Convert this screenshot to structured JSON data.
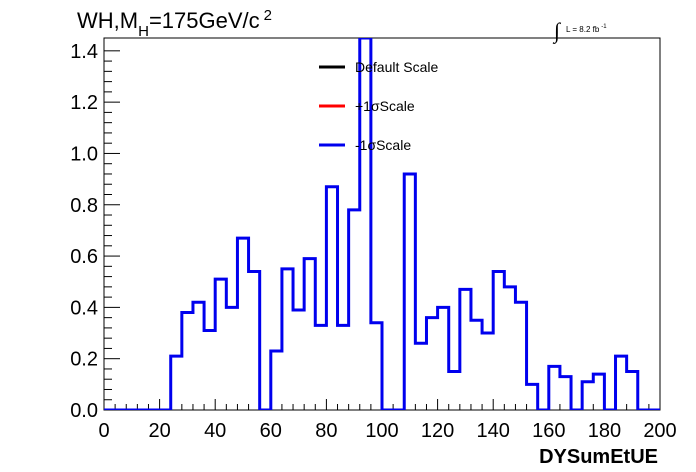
{
  "chart_data": {
    "type": "line",
    "title_main": "WH,M",
    "title_sub": "H",
    "title_rest": "=175GeV/c",
    "title_sup": "2",
    "lumi_label": "L = 8.2 fb",
    "lumi_sup": "-1",
    "integral_symbol": "∫",
    "xlabel": "DYSumEtUE",
    "ylabel": "",
    "xlim": [
      0,
      200
    ],
    "ylim": [
      0,
      1.45
    ],
    "x_ticks": [
      "0",
      "20",
      "40",
      "60",
      "80",
      "100",
      "120",
      "140",
      "160",
      "180",
      "200"
    ],
    "y_ticks": [
      "0.0",
      "0.2",
      "0.4",
      "0.6",
      "0.8",
      "1.0",
      "1.2",
      "1.4"
    ],
    "legend": [
      {
        "label": "Default Scale",
        "color": "#000000"
      },
      {
        "label": "+1σScale",
        "color": "#ff0000"
      },
      {
        "label": "-1σScale",
        "color": "#0000ee"
      }
    ],
    "bin_width": 4,
    "bin_start": 0,
    "series": [
      {
        "name": "-1σScale",
        "color": "#0000ee",
        "values": [
          0,
          0,
          0,
          0,
          0,
          0,
          0.21,
          0.38,
          0.42,
          0.31,
          0.51,
          0.4,
          0.67,
          0.54,
          0,
          0.23,
          0.55,
          0.39,
          0.59,
          0.33,
          0.87,
          0.33,
          0.78,
          1.45,
          0.34,
          0,
          0,
          0.92,
          0.26,
          0.36,
          0.4,
          0.15,
          0.47,
          0.35,
          0.3,
          0.54,
          0.48,
          0.42,
          0.1,
          0,
          0.17,
          0.13,
          0,
          0.11,
          0.14,
          0,
          0.21,
          0.15,
          0,
          0
        ]
      }
    ]
  }
}
